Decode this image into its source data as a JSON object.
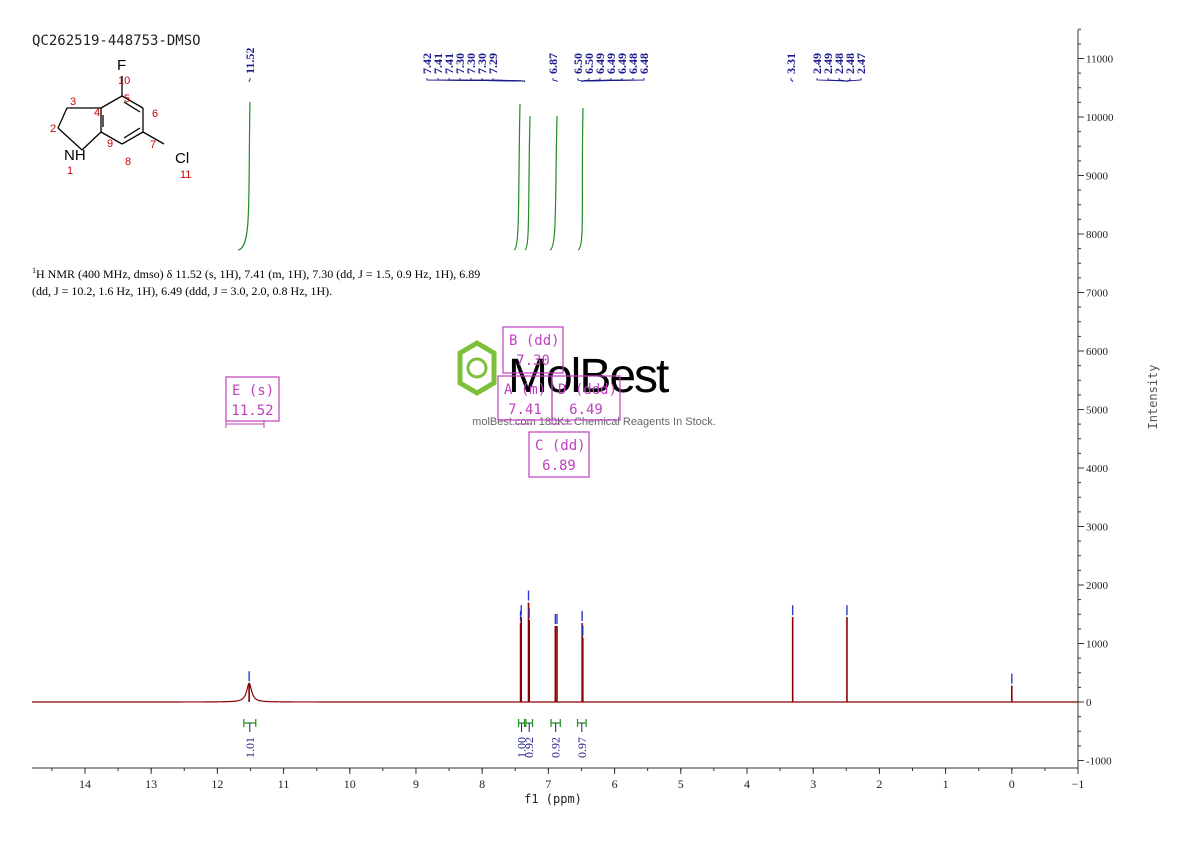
{
  "sample_id": "QC262519-448753-DMSO",
  "nmr_description": {
    "line1": "H NMR (400 MHz, dmso) δ 11.52 (s, 1H), 7.41 (m, 1H), 7.30 (dd, J = 1.5, 0.9 Hz, 1H), 6.89",
    "line1_sup": "1",
    "line2": "(dd, J = 10.2, 1.6 Hz, 1H), 6.49 (ddd, J = 3.0, 2.0, 0.8 Hz, 1H)."
  },
  "structure": {
    "atoms": [
      {
        "label": "F",
        "num": "10"
      },
      {
        "label": "NH",
        "num": "1"
      },
      {
        "label": "Cl",
        "num": "11"
      }
    ],
    "ring_numbers": [
      "2",
      "3",
      "4",
      "5",
      "6",
      "7",
      "8",
      "9"
    ]
  },
  "watermark": {
    "brand": "MolBest",
    "tagline": "molBest.com 180K+ Chemical Reagents In Stock."
  },
  "chart_data": {
    "type": "line",
    "xlabel": "f1 (ppm)",
    "ylabel": "Intensity",
    "xlim": [
      14.8,
      -1
    ],
    "ylim": [
      -1000,
      11500
    ],
    "x_ticks": [
      "14",
      "13",
      "12",
      "11",
      "10",
      "9",
      "8",
      "7",
      "6",
      "5",
      "4",
      "3",
      "2",
      "1",
      "0",
      "-1"
    ],
    "y_ticks": [
      "11000",
      "10000",
      "9000",
      "8000",
      "7000",
      "6000",
      "5000",
      "4000",
      "3000",
      "2000",
      "1000",
      "0",
      "-1000"
    ],
    "peaks": [
      {
        "ppm": 11.52,
        "height": 320,
        "width": 0.045
      },
      {
        "ppm": 7.42,
        "height": 1350,
        "width": 0.004
      },
      {
        "ppm": 7.41,
        "height": 1450,
        "width": 0.004
      },
      {
        "ppm": 7.3,
        "height": 1700,
        "width": 0.004
      },
      {
        "ppm": 7.29,
        "height": 1400,
        "width": 0.004
      },
      {
        "ppm": 6.895,
        "height": 1300,
        "width": 0.004
      },
      {
        "ppm": 6.87,
        "height": 1300,
        "width": 0.004
      },
      {
        "ppm": 6.49,
        "height": 1350,
        "width": 0.004
      },
      {
        "ppm": 6.48,
        "height": 1100,
        "width": 0.004
      },
      {
        "ppm": 3.31,
        "height": 1450,
        "width": 0.004
      },
      {
        "ppm": 2.49,
        "height": 1450,
        "width": 0.005
      },
      {
        "ppm": 0.0,
        "height": 280,
        "width": 0.004
      }
    ],
    "peak_labels": [
      {
        "group": [
          "11.52"
        ],
        "ppm": 11.52
      },
      {
        "group": [
          "7.42",
          "7.41",
          "7.41",
          "7.30",
          "7.30",
          "7.30",
          "7.29"
        ],
        "ppm": 7.36
      },
      {
        "group": [
          "6.87"
        ],
        "ppm": 6.87
      },
      {
        "group": [
          "6.50",
          "6.50",
          "6.49",
          "6.49",
          "6.49",
          "6.48",
          "6.48"
        ],
        "ppm": 6.49
      },
      {
        "group": [
          "3.31"
        ],
        "ppm": 3.31
      },
      {
        "group": [
          "2.49",
          "2.49",
          "2.48",
          "2.48",
          "2.47"
        ],
        "ppm": 2.49
      }
    ],
    "integrals": [
      {
        "value": "1.01",
        "from": 11.6,
        "to": 11.42
      },
      {
        "value": "1.00",
        "from": 7.45,
        "to": 7.36
      },
      {
        "value": "0.92",
        "from": 7.34,
        "to": 7.24
      },
      {
        "value": "0.92",
        "from": 6.96,
        "to": 6.82
      },
      {
        "value": "0.97",
        "from": 6.56,
        "to": 6.43
      }
    ],
    "multiplets": [
      {
        "id": "E",
        "type": "(s)",
        "shift": "11.52"
      },
      {
        "id": "B",
        "type": "(dd)",
        "shift": "7.30"
      },
      {
        "id": "A",
        "type": "(m)",
        "shift": "7.41"
      },
      {
        "id": "D",
        "type": "(ddd)",
        "shift": "6.49"
      },
      {
        "id": "C",
        "type": "(dd)",
        "shift": "6.89"
      }
    ],
    "colors": {
      "spectrum": "#8b0000",
      "peak_label": "#1a1a8c",
      "integral": "#228b22",
      "multiplet_box": "#c040c0",
      "watermark_green": "#7dc13b",
      "axis": "#333333"
    }
  }
}
